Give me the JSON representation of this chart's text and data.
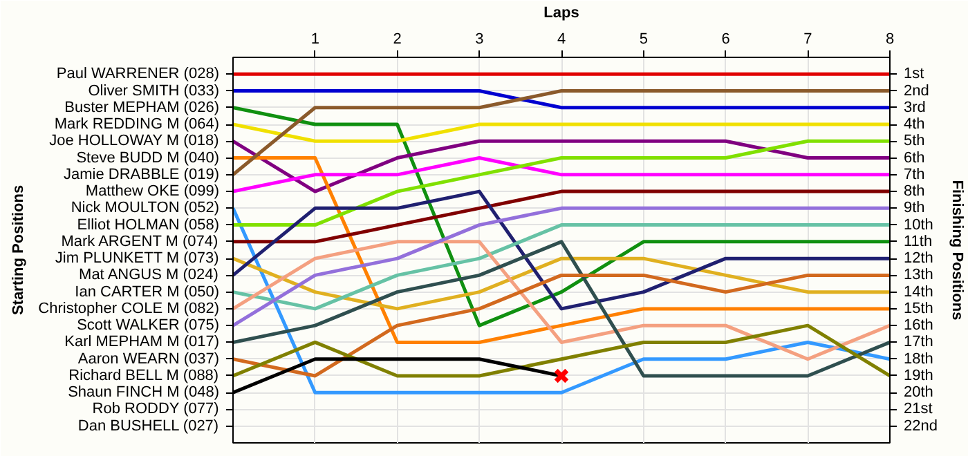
{
  "chart_data": {
    "type": "line",
    "xlabel": "Laps",
    "ylabel": "Finishing Positions",
    "x": [
      0,
      1,
      2,
      3,
      4,
      5,
      6,
      7,
      8
    ],
    "xlim": [
      0,
      8
    ],
    "xticks": [
      1,
      2,
      3,
      4,
      5,
      6,
      7,
      8
    ],
    "ylim": [
      23,
      0
    ],
    "yticks": [
      {
        "value": 1,
        "label": "1st"
      },
      {
        "value": 2,
        "label": "2nd"
      },
      {
        "value": 3,
        "label": "3rd"
      },
      {
        "value": 4,
        "label": "4th"
      },
      {
        "value": 5,
        "label": "5th"
      },
      {
        "value": 6,
        "label": "6th"
      },
      {
        "value": 7,
        "label": "7th"
      },
      {
        "value": 8,
        "label": "8th"
      },
      {
        "value": 9,
        "label": "9th"
      },
      {
        "value": 10,
        "label": "10th"
      },
      {
        "value": 11,
        "label": "11th"
      },
      {
        "value": 12,
        "label": "12th"
      },
      {
        "value": 13,
        "label": "13th"
      },
      {
        "value": 14,
        "label": "14th"
      },
      {
        "value": 15,
        "label": "15th"
      },
      {
        "value": 16,
        "label": "16th"
      },
      {
        "value": 17,
        "label": "17th"
      },
      {
        "value": 18,
        "label": "18th"
      },
      {
        "value": 19,
        "label": "19th"
      },
      {
        "value": 20,
        "label": "20th"
      },
      {
        "value": 21,
        "label": "21st"
      },
      {
        "value": 22,
        "label": "22nd"
      }
    ],
    "annotations": [
      "Starting Positions",
      "Paul WARRENER (028)",
      "Oliver SMITH (033)",
      "Buster MEPHAM (026)",
      "Mark REDDING M (064)",
      "Joe HOLLOWAY M (018)",
      "Steve BUDD M (040)",
      "Jamie DRABBLE (019)",
      "Matthew OKE (099)",
      "Nick MOULTON (052)",
      "Elliot HOLMAN (058)",
      "Mark ARGENT M (074)",
      "Jim PLUNKETT M (073)",
      "Mat ANGUS M (024)",
      "Ian CARTER M (050)",
      "Christopher COLE M (082)",
      "Scott WALKER (075)",
      "Karl MEPHAM M (017)",
      "Aaron WEARN (037)",
      "Richard BELL M (088)",
      "Shaun FINCH M (048)",
      "Rob RODDY (077)",
      "Dan BUSHELL (027)"
    ],
    "grid": true,
    "line_style": "solid",
    "series": [
      {
        "color": "#e00000",
        "values": [
          1,
          1,
          1,
          1,
          1,
          1,
          1,
          1,
          1
        ]
      },
      {
        "color": "#0000d0",
        "values": [
          2,
          2,
          2,
          2,
          3,
          3,
          3,
          3,
          3
        ]
      },
      {
        "color": "#109010",
        "values": [
          3,
          4,
          4,
          16,
          14,
          11,
          11,
          11,
          11
        ]
      },
      {
        "color": "#f0e000",
        "values": [
          4,
          5,
          5,
          4,
          4,
          4,
          4,
          4,
          4
        ]
      },
      {
        "color": "#800080",
        "values": [
          5,
          8,
          6,
          5,
          5,
          5,
          5,
          6,
          6
        ]
      },
      {
        "color": "#ff8000",
        "values": [
          6,
          6,
          17,
          17,
          16,
          15,
          15,
          15,
          15
        ]
      },
      {
        "color": "#8b5a2b",
        "values": [
          7,
          3,
          3,
          3,
          2,
          2,
          2,
          2,
          2
        ]
      },
      {
        "color": "#ff00ff",
        "values": [
          8,
          7,
          7,
          6,
          7,
          7,
          7,
          7,
          7
        ]
      },
      {
        "color": "#3399ff",
        "values": [
          9,
          20,
          20,
          20,
          20,
          18,
          18,
          17,
          18
        ]
      },
      {
        "color": "#80e000",
        "values": [
          10,
          10,
          8,
          7,
          6,
          6,
          6,
          5,
          5
        ]
      },
      {
        "color": "#800000",
        "values": [
          11,
          11,
          10,
          9,
          8,
          8,
          8,
          8,
          8
        ]
      },
      {
        "color": "#e0b020",
        "values": [
          12,
          14,
          15,
          14,
          12,
          12,
          13,
          14,
          14
        ]
      },
      {
        "color": "#202070",
        "values": [
          13,
          9,
          9,
          8,
          15,
          14,
          12,
          12,
          12
        ]
      },
      {
        "color": "#66c2a5",
        "values": [
          14,
          15,
          13,
          12,
          10,
          10,
          10,
          10,
          10
        ]
      },
      {
        "color": "#f4a080",
        "values": [
          15,
          12,
          11,
          11,
          17,
          16,
          16,
          18,
          16
        ]
      },
      {
        "color": "#9370db",
        "values": [
          16,
          13,
          12,
          10,
          9,
          9,
          9,
          9,
          9
        ]
      },
      {
        "color": "#2f4f4f",
        "values": [
          17,
          16,
          14,
          13,
          11,
          19,
          19,
          19,
          17
        ]
      },
      {
        "color": "#d2691e",
        "values": [
          18,
          19,
          16,
          15,
          13,
          13,
          14,
          13,
          13
        ]
      },
      {
        "color": "#808000",
        "values": [
          19,
          17,
          19,
          19,
          18,
          17,
          17,
          16,
          19
        ]
      },
      {
        "color": "#000000",
        "values": [
          20,
          18,
          18,
          18,
          19,
          null,
          null,
          null,
          null
        ]
      },
      {
        "type": "scatter",
        "marker": "cross",
        "color": "#ff0000",
        "x": [
          4
        ],
        "values": [
          19
        ]
      }
    ]
  }
}
